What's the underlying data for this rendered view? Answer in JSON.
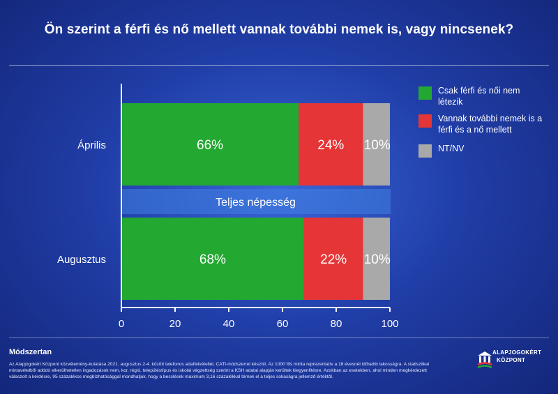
{
  "title": "Ön szerint a férfi és nő mellett vannak további nemek is, vagy nincsenek?",
  "chart_data": {
    "type": "bar",
    "orientation": "horizontal",
    "stacked": true,
    "categories": [
      "Április",
      "Augusztus"
    ],
    "series": [
      {
        "name": "Csak férfi és női nem létezik",
        "color": "#23a832",
        "values": [
          66,
          68
        ],
        "labels": [
          "66%",
          "68%"
        ]
      },
      {
        "name": "Vannak további nemek is a férfi és a nő mellett",
        "color": "#e53537",
        "values": [
          24,
          22
        ],
        "labels": [
          "24%",
          "22%"
        ]
      },
      {
        "name": "NT/NV",
        "color": "#a9a9a9",
        "values": [
          10,
          10
        ],
        "labels": [
          "10%",
          "10%"
        ]
      }
    ],
    "xlim": [
      0,
      100
    ],
    "xticks": [
      "0",
      "20",
      "40",
      "60",
      "80",
      "100"
    ],
    "band_label": "Teljes népesség",
    "legend_position": "right"
  },
  "legend": [
    {
      "label": "Csak férfi és női nem létezik",
      "color": "#23a832"
    },
    {
      "label": "Vannak további nemek is a férfi és a nő mellett",
      "color": "#e53537"
    },
    {
      "label": "NT/NV",
      "color": "#a9a9a9"
    }
  ],
  "methodology": {
    "heading": "Módszertan",
    "text": "Az Alapjogokért Központ közvélemény-kutatása 2021. augusztus 2-4. között telefonos adatfelvétellel, CATI-módszerrel készült. Az 1000 fős minta reprezentatív a 18 évesnél idősebb lakosságra. A statisztikai mintavételből adódó elkerülhetetlen ingadozások nem, kor, régió, településtípus és iskolai végzettség szerint a KSH adatai alapján kerültek kiegyenlítésre. Azokban az esetekben, ahol minden megkérdezett válaszolt a kérdésre, 95 százalékos megbízhatósággal mondhatjuk, hogy a becslések maximum 3,16 százalékkal térnek el a teljes sokaságra jellemző értéktől."
  },
  "logo": {
    "line1": "ALAPJOGOKÉRT",
    "line2": "KÖZPONT"
  }
}
